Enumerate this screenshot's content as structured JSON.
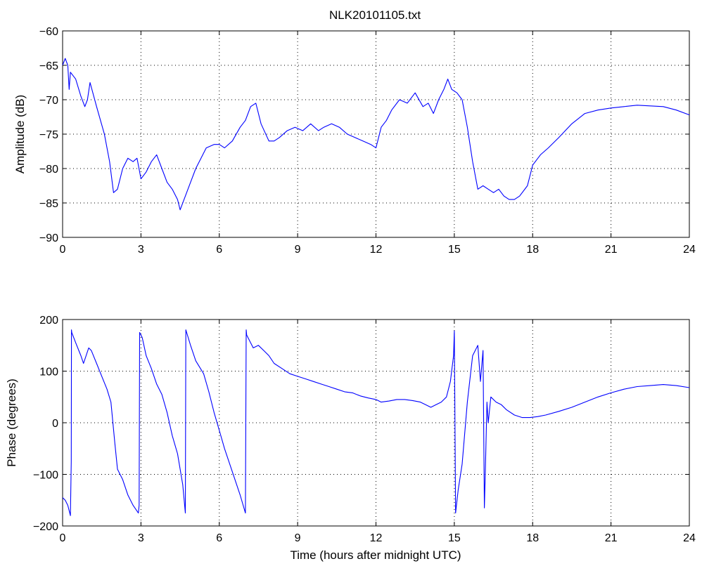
{
  "chart_data": [
    {
      "type": "line",
      "title": "NLK20101105.txt",
      "xlabel": "",
      "ylabel": "Amplitude (dB)",
      "xlim": [
        0,
        24
      ],
      "ylim": [
        -90,
        -60
      ],
      "xticks": [
        0,
        3,
        6,
        9,
        12,
        15,
        18,
        21,
        24
      ],
      "yticks": [
        -90,
        -85,
        -80,
        -75,
        -70,
        -65,
        -60
      ],
      "xtick_labels": [
        "0",
        "3",
        "6",
        "9",
        "12",
        "15",
        "18",
        "21",
        "24"
      ],
      "ytick_labels": [
        "−90",
        "−85",
        "−80",
        "−75",
        "−70",
        "−65",
        "−60"
      ],
      "grid": true,
      "color": "#0000ff",
      "series": [
        {
          "x": [
            0,
            0.1,
            0.2,
            0.25,
            0.3,
            0.5,
            0.7,
            0.85,
            0.95,
            1.05,
            1.3,
            1.6,
            1.8,
            1.95,
            2.1,
            2.3,
            2.5,
            2.7,
            2.85,
            3.0,
            3.2,
            3.4,
            3.6,
            3.8,
            4.0,
            4.2,
            4.4,
            4.5,
            4.7,
            4.9,
            5.1,
            5.3,
            5.5,
            5.8,
            6.0,
            6.2,
            6.5,
            6.8,
            7.0,
            7.2,
            7.4,
            7.6,
            7.9,
            8.1,
            8.3,
            8.6,
            8.9,
            9.2,
            9.5,
            9.8,
            10.0,
            10.3,
            10.6,
            10.9,
            11.2,
            11.5,
            11.8,
            12.0,
            12.2,
            12.4,
            12.6,
            12.9,
            13.2,
            13.5,
            13.8,
            14.0,
            14.2,
            14.4,
            14.6,
            14.75,
            14.9,
            15.1,
            15.3,
            15.5,
            15.7,
            15.9,
            16.1,
            16.3,
            16.5,
            16.7,
            16.9,
            17.1,
            17.3,
            17.5,
            17.8,
            18.0,
            18.3,
            18.6,
            19.0,
            19.5,
            20.0,
            20.5,
            21.0,
            21.5,
            22.0,
            22.5,
            23.0,
            23.5,
            24.0
          ],
          "y": [
            -65,
            -64,
            -65,
            -68.5,
            -66,
            -67,
            -69.5,
            -71,
            -70,
            -67.5,
            -71,
            -75,
            -79,
            -83.5,
            -83,
            -80,
            -78.5,
            -79,
            -78.5,
            -81.5,
            -80.5,
            -79,
            -78,
            -80,
            -82,
            -83,
            -84.5,
            -86,
            -84,
            -82,
            -80,
            -78.5,
            -77,
            -76.5,
            -76.5,
            -77,
            -76,
            -74,
            -73,
            -71,
            -70.5,
            -73.5,
            -76,
            -76,
            -75.5,
            -74.5,
            -74,
            -74.5,
            -73.5,
            -74.5,
            -74,
            -73.5,
            -74,
            -75,
            -75.5,
            -76,
            -76.5,
            -77,
            -74,
            -73,
            -71.5,
            -70,
            -70.5,
            -69,
            -71,
            -70.5,
            -72,
            -70,
            -68.5,
            -67,
            -68.5,
            -69,
            -70,
            -74,
            -79,
            -83,
            -82.5,
            -83,
            -83.5,
            -83,
            -84,
            -84.5,
            -84.5,
            -84,
            -82.5,
            -79.5,
            -78,
            -77,
            -75.5,
            -73.5,
            -72,
            -71.5,
            -71.2,
            -71,
            -70.8,
            -70.9,
            -71,
            -71.5,
            -72.2
          ]
        }
      ]
    },
    {
      "type": "line",
      "title": "",
      "xlabel": "Time (hours after midnight UTC)",
      "ylabel": "Phase (degrees)",
      "xlim": [
        0,
        24
      ],
      "ylim": [
        -200,
        200
      ],
      "xticks": [
        0,
        3,
        6,
        9,
        12,
        15,
        18,
        21,
        24
      ],
      "yticks": [
        -200,
        -100,
        0,
        100,
        200
      ],
      "xtick_labels": [
        "0",
        "3",
        "6",
        "9",
        "12",
        "15",
        "18",
        "21",
        "24"
      ],
      "ytick_labels": [
        "−200",
        "−100",
        "0",
        "100",
        "200"
      ],
      "grid": true,
      "color": "#0000ff",
      "series": [
        {
          "x": [
            0,
            0.1,
            0.2,
            0.3,
            0.33,
            0.34,
            0.35,
            0.5,
            0.7,
            0.8,
            0.9,
            1.0,
            1.1,
            1.3,
            1.5,
            1.7,
            1.85,
            2.0,
            2.1,
            2.3,
            2.5,
            2.7,
            2.9,
            2.93,
            2.95,
            3.05,
            3.2,
            3.4,
            3.6,
            3.8,
            4.0,
            4.2,
            4.4,
            4.6,
            4.7,
            4.72,
            4.75,
            4.9,
            5.1,
            5.4,
            5.6,
            5.8,
            6.0,
            6.2,
            6.5,
            6.8,
            7.0,
            7.03,
            7.05,
            7.3,
            7.5,
            7.7,
            7.9,
            8.1,
            8.4,
            8.7,
            9.0,
            9.3,
            9.6,
            9.9,
            10.2,
            10.5,
            10.8,
            11.1,
            11.4,
            11.7,
            12.0,
            12.2,
            12.5,
            12.8,
            13.1,
            13.4,
            13.7,
            13.9,
            14.1,
            14.3,
            14.5,
            14.7,
            14.85,
            14.97,
            15.0,
            15.05,
            15.15,
            15.3,
            15.5,
            15.7,
            15.9,
            16.0,
            16.1,
            16.15,
            16.18,
            16.25,
            16.3,
            16.4,
            16.6,
            16.8,
            17.0,
            17.3,
            17.6,
            17.9,
            18.2,
            18.5,
            19.0,
            19.5,
            20.0,
            20.5,
            21.0,
            21.5,
            22.0,
            22.5,
            23.0,
            23.5,
            24.0
          ],
          "y": [
            -145,
            -150,
            -160,
            -180,
            -75,
            180,
            175,
            155,
            130,
            115,
            130,
            145,
            140,
            115,
            90,
            65,
            40,
            -40,
            -90,
            -110,
            -140,
            -160,
            -175,
            -160,
            175,
            165,
            130,
            105,
            75,
            55,
            20,
            -25,
            -60,
            -120,
            -175,
            180,
            175,
            150,
            120,
            95,
            60,
            20,
            -15,
            -50,
            -95,
            -140,
            -175,
            180,
            170,
            145,
            150,
            140,
            130,
            115,
            105,
            95,
            90,
            85,
            80,
            75,
            70,
            65,
            60,
            58,
            52,
            48,
            45,
            40,
            42,
            45,
            45,
            43,
            40,
            35,
            30,
            35,
            40,
            50,
            80,
            130,
            178,
            -175,
            -130,
            -80,
            40,
            130,
            150,
            80,
            140,
            -165,
            -110,
            40,
            0,
            50,
            40,
            35,
            25,
            15,
            10,
            10,
            12,
            15,
            22,
            30,
            40,
            50,
            58,
            65,
            70,
            72,
            74,
            72,
            68
          ]
        }
      ]
    }
  ]
}
